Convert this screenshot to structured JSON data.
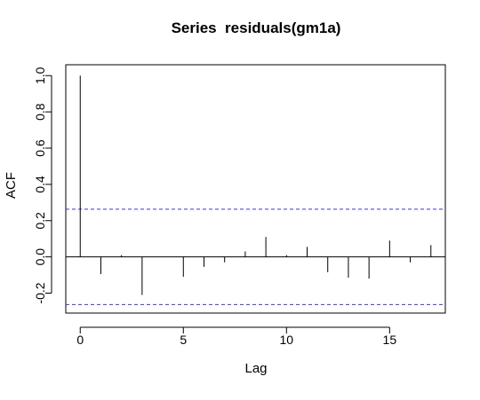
{
  "chart_data": {
    "type": "bar",
    "title": "Series  residuals(gm1a)",
    "xlabel": "Lag",
    "ylabel": "ACF",
    "xlim": [
      -0.7,
      17.7
    ],
    "ylim": [
      -0.31,
      1.06
    ],
    "x_ticks": [
      0,
      5,
      10,
      15
    ],
    "x_tick_labels": [
      "0",
      "5",
      "10",
      "15"
    ],
    "y_ticks": [
      -0.2,
      0.0,
      0.2,
      0.4,
      0.6,
      0.8,
      1.0
    ],
    "y_tick_labels": [
      "-0.2",
      "0.0",
      "0.2",
      "0.4",
      "0.6",
      "0.8",
      "1.0"
    ],
    "lags": [
      0,
      1,
      2,
      3,
      4,
      5,
      6,
      7,
      8,
      9,
      10,
      11,
      12,
      13,
      14,
      15,
      16,
      17
    ],
    "acf": [
      1.0,
      -0.095,
      0.01,
      -0.21,
      0.0,
      -0.11,
      -0.055,
      -0.03,
      0.03,
      0.11,
      0.01,
      0.055,
      -0.085,
      -0.115,
      -0.12,
      0.09,
      -0.03,
      0.065
    ],
    "confidence_bound": 0.263,
    "confidence_color": "#3a3ad0",
    "grid": false,
    "legend": "none"
  }
}
